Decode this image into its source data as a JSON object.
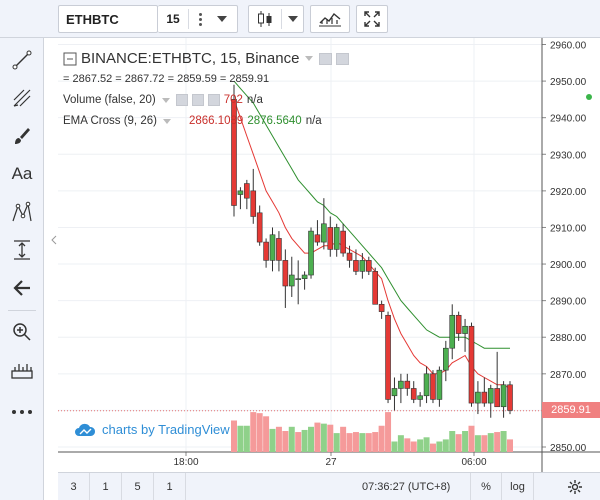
{
  "toolbar": {
    "symbol": "ETHBTC",
    "interval": "15"
  },
  "legend": {
    "symbol_title": "BINANCE:ETHBTC, 15, Binance",
    "ohlc_text": "= 2867.52 = 2867.72 = 2859.59 = 2859.91",
    "volume_label": "Volume (false, 20)",
    "volume_value": "702",
    "volume_ma": "n/a",
    "ema_label": "EMA Cross (9, 26)",
    "ema_fast": "2866.1089",
    "ema_slow": "2876.5640",
    "ema_na": "n/a"
  },
  "attribution": "charts by TradingView",
  "current_price": "2859.91",
  "bottom": {
    "ranges": [
      "3",
      "1",
      "5",
      "1"
    ],
    "clock": "07:36:27 (UTC+8)",
    "percent": "%",
    "log": "log"
  },
  "colors": {
    "up": "#4caf50",
    "down": "#e53935",
    "volume_up": "#8fd18a",
    "volume_down": "#f59a9a",
    "ema_fast": "#e53935",
    "ema_slow": "#2f8f2f",
    "accent": "#2f8ed6"
  },
  "icons": {
    "left_toolbar": [
      "crosshair-icon",
      "trend-line-icon",
      "pitchfork-icon",
      "brush-icon",
      "text-icon",
      "pattern-icon",
      "measure-icon",
      "arrow-left-icon",
      "zoom-in-icon",
      "ruler-icon",
      "more-icon"
    ]
  },
  "chart_data": {
    "type": "candlestick",
    "y_ticks": [
      "2960.00",
      "2950.00",
      "2940.00",
      "2930.00",
      "2920.00",
      "2910.00",
      "2900.00",
      "2890.00",
      "2880.00",
      "2870.00",
      "2860.00",
      "2850.00"
    ],
    "ylim": [
      2850,
      2960
    ],
    "x_ticks": [
      "18:00",
      "27",
      "06:00"
    ],
    "candles": [
      {
        "o": 2945,
        "h": 2949,
        "l": 2913,
        "c": 2916
      },
      {
        "o": 2919,
        "h": 2921,
        "l": 2915,
        "c": 2920
      },
      {
        "o": 2922,
        "h": 2923,
        "l": 2915,
        "c": 2918
      },
      {
        "o": 2920,
        "h": 2926,
        "l": 2911,
        "c": 2913
      },
      {
        "o": 2914,
        "h": 2916,
        "l": 2905,
        "c": 2906
      },
      {
        "o": 2906,
        "h": 2907,
        "l": 2899,
        "c": 2901
      },
      {
        "o": 2901,
        "h": 2910,
        "l": 2898,
        "c": 2908
      },
      {
        "o": 2907,
        "h": 2909,
        "l": 2898,
        "c": 2901
      },
      {
        "o": 2901,
        "h": 2904,
        "l": 2888,
        "c": 2894
      },
      {
        "o": 2894,
        "h": 2902,
        "l": 2891,
        "c": 2897
      },
      {
        "o": 2896,
        "h": 2901,
        "l": 2889,
        "c": 2896
      },
      {
        "o": 2896,
        "h": 2898,
        "l": 2893,
        "c": 2897
      },
      {
        "o": 2897,
        "h": 2910,
        "l": 2896,
        "c": 2909
      },
      {
        "o": 2908,
        "h": 2912,
        "l": 2905,
        "c": 2906
      },
      {
        "o": 2906,
        "h": 2918,
        "l": 2904,
        "c": 2911
      },
      {
        "o": 2910,
        "h": 2913,
        "l": 2902,
        "c": 2904
      },
      {
        "o": 2904,
        "h": 2911,
        "l": 2902,
        "c": 2910
      },
      {
        "o": 2909,
        "h": 2911,
        "l": 2902,
        "c": 2903
      },
      {
        "o": 2903,
        "h": 2905,
        "l": 2899,
        "c": 2901
      },
      {
        "o": 2901,
        "h": 2904,
        "l": 2897,
        "c": 2898
      },
      {
        "o": 2898,
        "h": 2903,
        "l": 2896,
        "c": 2901
      },
      {
        "o": 2901,
        "h": 2902,
        "l": 2897,
        "c": 2898
      },
      {
        "o": 2898,
        "h": 2899,
        "l": 2889,
        "c": 2889
      },
      {
        "o": 2889,
        "h": 2890,
        "l": 2885,
        "c": 2887
      },
      {
        "o": 2886,
        "h": 2887,
        "l": 2862,
        "c": 2863
      },
      {
        "o": 2864,
        "h": 2869,
        "l": 2860,
        "c": 2866
      },
      {
        "o": 2866,
        "h": 2870,
        "l": 2862,
        "c": 2868
      },
      {
        "o": 2868,
        "h": 2870,
        "l": 2864,
        "c": 2866
      },
      {
        "o": 2866,
        "h": 2868,
        "l": 2862,
        "c": 2863
      },
      {
        "o": 2863,
        "h": 2865,
        "l": 2861,
        "c": 2864
      },
      {
        "o": 2864,
        "h": 2872,
        "l": 2862,
        "c": 2870
      },
      {
        "o": 2870,
        "h": 2871,
        "l": 2862,
        "c": 2863
      },
      {
        "o": 2863,
        "h": 2872,
        "l": 2861,
        "c": 2871
      },
      {
        "o": 2871,
        "h": 2879,
        "l": 2868,
        "c": 2877
      },
      {
        "o": 2877,
        "h": 2889,
        "l": 2874,
        "c": 2886
      },
      {
        "o": 2886,
        "h": 2887,
        "l": 2879,
        "c": 2881
      },
      {
        "o": 2881,
        "h": 2885,
        "l": 2876,
        "c": 2883
      },
      {
        "o": 2883,
        "h": 2884,
        "l": 2861,
        "c": 2862
      },
      {
        "o": 2862,
        "h": 2868,
        "l": 2859,
        "c": 2865
      },
      {
        "o": 2865,
        "h": 2869,
        "l": 2861,
        "c": 2862
      },
      {
        "o": 2862,
        "h": 2867,
        "l": 2858,
        "c": 2866
      },
      {
        "o": 2866,
        "h": 2876,
        "l": 2861,
        "c": 2861
      },
      {
        "o": 2861,
        "h": 2868,
        "l": 2858,
        "c": 2867
      },
      {
        "o": 2867,
        "h": 2868,
        "l": 2859,
        "c": 2860
      }
    ],
    "volume_up": [
      false,
      true,
      true,
      false,
      false,
      false,
      true,
      false,
      false,
      true,
      false,
      true,
      true,
      false,
      true,
      false,
      true,
      false,
      false,
      false,
      true,
      false,
      false,
      false,
      false,
      true,
      true,
      false,
      false,
      true,
      true,
      false,
      true,
      true,
      true,
      false,
      true,
      false,
      true,
      false,
      true,
      false,
      true,
      false
    ],
    "volume": [
      30,
      25,
      25,
      38,
      37,
      34,
      22,
      24,
      20,
      24,
      19,
      21,
      24,
      28,
      27,
      26,
      18,
      24,
      18,
      19,
      18,
      18,
      19,
      25,
      38,
      10,
      16,
      13,
      10,
      12,
      14,
      8,
      10,
      12,
      20,
      17,
      20,
      25,
      16,
      16,
      18,
      19,
      20,
      12
    ],
    "ema_fast": [
      2945,
      2940,
      2935,
      2930,
      2925,
      2920,
      2917,
      2914,
      2910,
      2907,
      2905,
      2903,
      2903,
      2904,
      2905,
      2905,
      2906,
      2905,
      2904,
      2903,
      2902,
      2900,
      2898,
      2896,
      2890,
      2885,
      2881,
      2878,
      2875,
      2873,
      2872,
      2870,
      2870,
      2871,
      2873,
      2874,
      2875,
      2872,
      2870,
      2869,
      2868,
      2867,
      2867,
      2866
    ],
    "ema_slow": [
      2950,
      2948,
      2946,
      2944,
      2941,
      2938,
      2935,
      2932,
      2929,
      2926,
      2923,
      2921,
      2919,
      2917,
      2916,
      2914,
      2913,
      2911,
      2909,
      2907,
      2905,
      2903,
      2901,
      2899,
      2896,
      2893,
      2890,
      2888,
      2886,
      2884,
      2882,
      2881,
      2880,
      2880,
      2880,
      2880,
      2880,
      2879,
      2878,
      2877,
      2877,
      2877,
      2877,
      2877
    ]
  }
}
